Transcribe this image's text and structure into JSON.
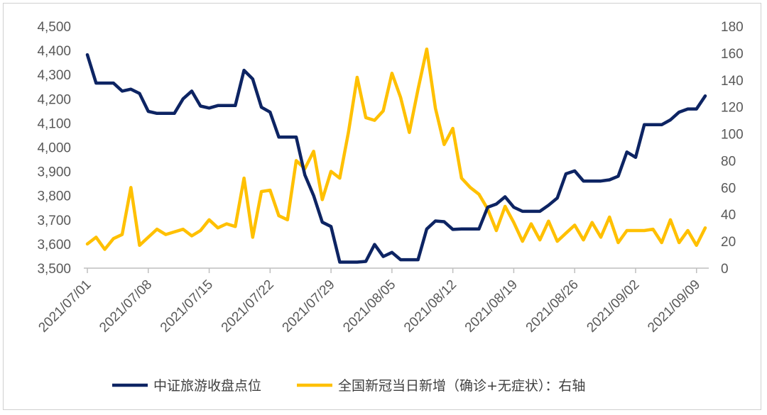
{
  "chart_data": {
    "type": "line",
    "title": "",
    "xlabel": "",
    "ylabel": "",
    "y_left": {
      "lim": [
        3500,
        4500
      ],
      "ticks": [
        "3,500",
        "3,600",
        "3,700",
        "3,800",
        "3,900",
        "4,000",
        "4,100",
        "4,200",
        "4,300",
        "4,400",
        "4,500"
      ]
    },
    "y_right": {
      "lim": [
        0,
        180
      ],
      "ticks": [
        "0",
        "20",
        "40",
        "60",
        "80",
        "100",
        "120",
        "140",
        "160",
        "180"
      ]
    },
    "x_tick_labels": [
      "2021/07/01",
      "2021/07/08",
      "2021/07/15",
      "2021/07/22",
      "2021/07/29",
      "2021/08/05",
      "2021/08/12",
      "2021/08/19",
      "2021/08/26",
      "2021/09/02",
      "2021/09/09"
    ],
    "x": [
      "2021/07/01",
      "2021/07/02",
      "2021/07/03",
      "2021/07/04",
      "2021/07/05",
      "2021/07/06",
      "2021/07/07",
      "2021/07/08",
      "2021/07/09",
      "2021/07/10",
      "2021/07/11",
      "2021/07/12",
      "2021/07/13",
      "2021/07/14",
      "2021/07/15",
      "2021/07/16",
      "2021/07/17",
      "2021/07/18",
      "2021/07/19",
      "2021/07/20",
      "2021/07/21",
      "2021/07/22",
      "2021/07/23",
      "2021/07/24",
      "2021/07/25",
      "2021/07/26",
      "2021/07/27",
      "2021/07/28",
      "2021/07/29",
      "2021/07/30",
      "2021/07/31",
      "2021/08/01",
      "2021/08/02",
      "2021/08/03",
      "2021/08/04",
      "2021/08/05",
      "2021/08/06",
      "2021/08/07",
      "2021/08/08",
      "2021/08/09",
      "2021/08/10",
      "2021/08/11",
      "2021/08/12",
      "2021/08/13",
      "2021/08/14",
      "2021/08/15",
      "2021/08/16",
      "2021/08/17",
      "2021/08/18",
      "2021/08/19",
      "2021/08/20",
      "2021/08/21",
      "2021/08/22",
      "2021/08/23",
      "2021/08/24",
      "2021/08/25",
      "2021/08/26",
      "2021/08/27",
      "2021/08/28",
      "2021/08/29",
      "2021/08/30",
      "2021/08/31",
      "2021/09/01",
      "2021/09/02",
      "2021/09/03",
      "2021/09/04",
      "2021/09/05",
      "2021/09/06",
      "2021/09/07",
      "2021/09/08",
      "2021/09/09",
      "2021/09/10"
    ],
    "series": [
      {
        "name": "中证旅游收盘点位",
        "axis": "left",
        "color": "#0d2463",
        "values": [
          4382,
          4265,
          4265,
          4265,
          4232,
          4240,
          4222,
          4148,
          4140,
          4140,
          4140,
          4200,
          4232,
          4170,
          4162,
          4172,
          4172,
          4172,
          4318,
          4282,
          4165,
          4145,
          4042,
          4042,
          4042,
          3885,
          3800,
          3690,
          3672,
          3525,
          3525,
          3525,
          3528,
          3598,
          3548,
          3565,
          3535,
          3535,
          3535,
          3662,
          3695,
          3692,
          3660,
          3662,
          3662,
          3662,
          3752,
          3765,
          3795,
          3752,
          3735,
          3735,
          3735,
          3760,
          3790,
          3890,
          3902,
          3860,
          3860,
          3860,
          3865,
          3880,
          3980,
          3958,
          4093,
          4093,
          4093,
          4113,
          4145,
          4158,
          4158,
          4212
        ]
      },
      {
        "name": "全国新冠当日新增（确诊+无症状）：右轴",
        "axis": "right",
        "color": "#ffc000",
        "values": [
          18,
          23,
          14,
          22,
          25,
          60,
          17,
          23,
          29,
          25,
          27,
          29,
          24,
          28,
          36,
          30,
          33,
          31,
          67,
          23,
          57,
          58,
          39,
          36,
          80,
          74,
          87,
          51,
          72,
          67,
          101,
          142,
          112,
          110,
          117,
          145,
          127,
          101,
          133,
          163,
          119,
          92,
          104,
          67,
          60,
          55,
          44,
          28,
          46,
          34,
          20,
          33,
          21,
          35,
          20,
          26,
          32,
          21,
          34,
          23,
          38,
          19,
          28,
          28,
          28,
          29,
          19,
          36,
          19,
          28,
          17,
          30
        ]
      }
    ],
    "legend_position": "bottom",
    "grid": false
  }
}
